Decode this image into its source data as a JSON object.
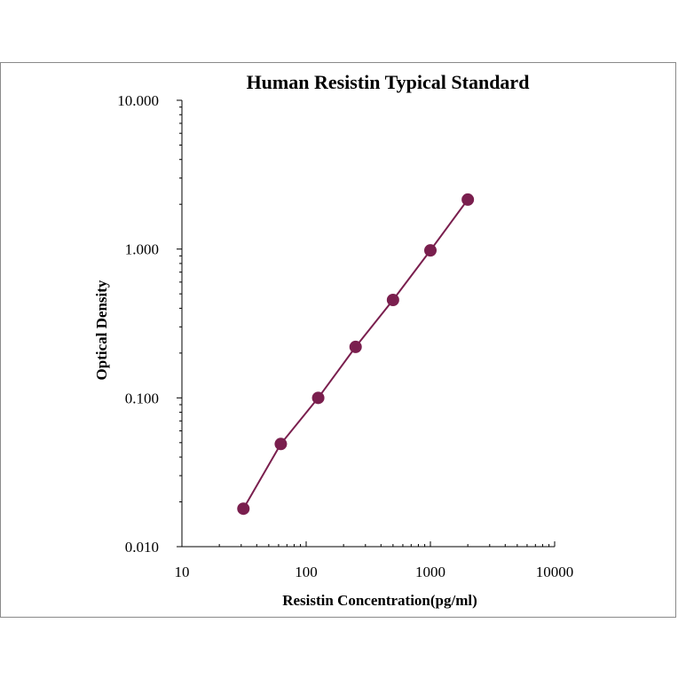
{
  "chart_data": {
    "type": "scatter",
    "title": "Human  Resistin Typical Standard",
    "xlabel": "Resistin Concentration(pg/ml)",
    "ylabel": "Optical  Density",
    "x_scale": "log",
    "y_scale": "log",
    "xlim": [
      10,
      10000
    ],
    "ylim": [
      0.01,
      10
    ],
    "x_ticks": [
      "10",
      "100",
      "1000",
      "10000"
    ],
    "y_ticks": [
      "10.000",
      "1.000",
      "0.100",
      "0.010"
    ],
    "grid": false,
    "legend": "none",
    "series": [
      {
        "x": [
          31.25,
          62.5,
          125,
          250,
          500,
          1000,
          2000
        ],
        "y": [
          0.018,
          0.049,
          0.1,
          0.22,
          0.455,
          0.98,
          2.15
        ],
        "color": "#7a1f4e",
        "marker": "circle",
        "line": true
      }
    ]
  }
}
